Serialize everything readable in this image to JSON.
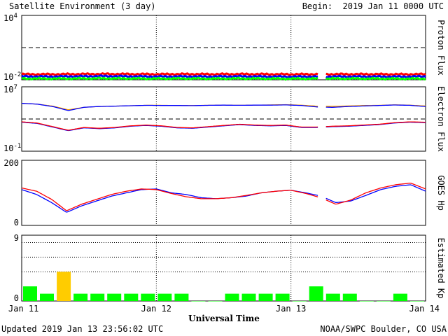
{
  "chart_data": {
    "type": "line",
    "title": "Satellite Environment (3 day)",
    "begin_label": "Begin:  2019 Jan 11 0000 UTC",
    "xlabel": "Universal Time",
    "x_ticks": [
      "Jan 11",
      "Jan 12",
      "Jan 13",
      "Jan 14"
    ],
    "x_range_days": [
      0,
      3
    ],
    "footer_left": "Updated 2019 Jan 13 23:56:02 UTC",
    "footer_right": "NOAA/SWPC Boulder, CO USA",
    "panels": [
      {
        "id": "proton",
        "ylabel": "Proton Flux",
        "scale": "log",
        "ylim_exp": [
          -2,
          4
        ],
        "y_tick_base": "10",
        "y_tick_exps": [
          "4",
          "-2"
        ],
        "threshold_exp": 1,
        "gap_days": [
          2.2,
          2.26
        ],
        "series": [
          {
            "color": "#ff0000",
            "values_exp": [
              -1.48,
              -1.49,
              -1.47,
              -1.46,
              -1.47,
              -1.48,
              -1.47,
              -1.48,
              -1.47,
              -1.48,
              -1.49,
              -1.48,
              -1.48,
              -1.48,
              -1.49,
              -1.48
            ]
          },
          {
            "color": "#0000ff",
            "values_exp": [
              -1.68,
              -1.7,
              -1.68,
              -1.66,
              -1.68,
              -1.7,
              -1.69,
              -1.7,
              -1.68,
              -1.7,
              -1.71,
              -1.7,
              -1.7,
              -1.7,
              -1.71,
              -1.69
            ]
          },
          {
            "color": "#00ff00",
            "values_exp": [
              -1.88,
              -1.89,
              -1.88,
              -1.87,
              -1.88,
              -1.89,
              -1.88,
              -1.89,
              -1.88,
              -1.89,
              -1.9,
              -1.89,
              -1.89,
              -1.89,
              -1.9,
              -1.89
            ]
          }
        ]
      },
      {
        "id": "electron",
        "ylabel": "Electron Flux",
        "scale": "log",
        "ylim_exp": [
          -1,
          7
        ],
        "y_tick_base": "10",
        "y_tick_exps": [
          "7",
          "-1"
        ],
        "threshold_exp": 3,
        "gap_days": [
          2.2,
          2.26
        ],
        "series": [
          {
            "color": "#ffa500",
            "values_exp": [
              4.95,
              4.85,
              4.6,
              4.15,
              4.45,
              4.55,
              4.6,
              4.65,
              4.7,
              4.7,
              4.68,
              4.68,
              4.7,
              4.72,
              4.7,
              4.72,
              4.75,
              4.78,
              4.72,
              4.6,
              4.58,
              4.62,
              4.68,
              4.7,
              4.76,
              4.72,
              4.62
            ]
          },
          {
            "color": "#0000ff",
            "values_exp": [
              4.95,
              4.85,
              4.55,
              4.05,
              4.45,
              4.55,
              4.6,
              4.65,
              4.7,
              4.68,
              4.68,
              4.66,
              4.7,
              4.72,
              4.7,
              4.72,
              4.72,
              4.75,
              4.68,
              4.5,
              4.45,
              4.55,
              4.62,
              4.68,
              4.74,
              4.7,
              4.55
            ]
          },
          {
            "color": "#0000ff",
            "values_exp": [
              2.6,
              2.45,
              2.0,
              1.55,
              1.9,
              1.8,
              1.9,
              2.1,
              2.2,
              2.1,
              1.9,
              1.85,
              2.0,
              2.15,
              2.3,
              2.2,
              2.15,
              2.2,
              1.95,
              1.95,
              2.05,
              2.1,
              2.2,
              2.3,
              2.5,
              2.6,
              2.55
            ]
          },
          {
            "color": "#ff0000",
            "values_exp": [
              2.65,
              2.5,
              2.05,
              1.6,
              1.95,
              1.85,
              1.95,
              2.15,
              2.25,
              2.15,
              1.95,
              1.9,
              2.05,
              2.2,
              2.35,
              2.25,
              2.2,
              2.25,
              2.0,
              2.0,
              2.1,
              2.15,
              2.25,
              2.35,
              2.55,
              2.65,
              2.6
            ]
          }
        ]
      },
      {
        "id": "goes_hp",
        "ylabel": "GOES Hp",
        "scale": "linear",
        "ylim": [
          0,
          200
        ],
        "y_ticks": [
          "200",
          "0"
        ],
        "gap_days": [
          2.2,
          2.26
        ],
        "series": [
          {
            "color": "#0000ff",
            "values": [
              110,
              95,
              70,
              40,
              60,
              75,
              90,
              100,
              110,
              112,
              100,
              95,
              85,
              82,
              85,
              90,
              100,
              105,
              108,
              100,
              90,
              70,
              75,
              92,
              110,
              120,
              125,
              105
            ]
          },
          {
            "color": "#ff0000",
            "values": [
              115,
              105,
              80,
              45,
              65,
              80,
              95,
              105,
              112,
              110,
              98,
              88,
              82,
              82,
              85,
              92,
              100,
              105,
              108,
              98,
              85,
              65,
              78,
              100,
              115,
              125,
              130,
              112
            ]
          }
        ]
      },
      {
        "id": "kp",
        "ylabel": "Estimated Kp",
        "scale": "linear",
        "ylim": [
          0,
          9
        ],
        "y_ticks": [
          "9",
          "0"
        ],
        "dotted_levels": [
          4,
          6,
          8
        ],
        "bars": [
          2,
          1,
          4,
          1,
          1,
          1,
          1,
          1,
          1,
          1,
          0,
          0,
          1,
          1,
          1,
          1,
          0,
          2,
          1,
          1,
          0,
          0,
          1,
          0
        ],
        "bar_colors": {
          "normal": "#00ff00",
          "storm": "#ffcc00",
          "storm_threshold": 4
        }
      }
    ]
  }
}
